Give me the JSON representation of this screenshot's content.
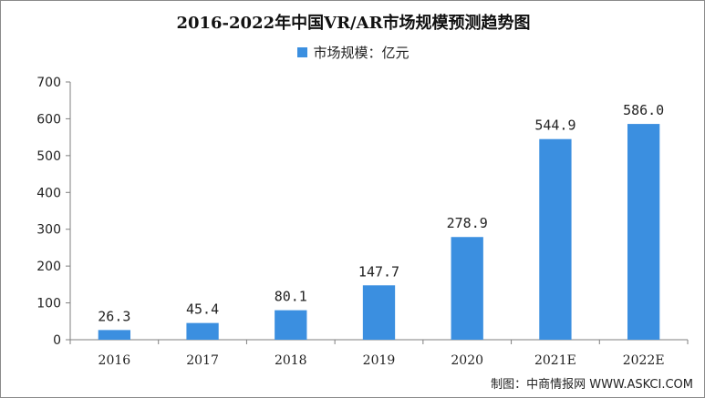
{
  "chart_data": {
    "type": "bar",
    "title": "2016-2022年中国VR/AR市场规模预测趋势图",
    "series": [
      {
        "name": "市场规模：亿元",
        "values": [
          26.3,
          45.4,
          80.1,
          147.7,
          278.9,
          544.9,
          586.0
        ],
        "labels": [
          "26.3",
          "45.4",
          "80.1",
          "147.7",
          "278.9",
          "544.9",
          "586.0"
        ]
      }
    ],
    "categories": [
      "2016",
      "2017",
      "2018",
      "2019",
      "2020",
      "2021E",
      "2022E"
    ],
    "ylim": [
      0,
      700
    ],
    "yticks": [
      0,
      100,
      200,
      300,
      400,
      500,
      600,
      700
    ],
    "grid": false,
    "legend": "top-center",
    "bar_color": "#3b8fe0"
  },
  "source": "制图：中商情报网 WWW.ASKCI.COM"
}
